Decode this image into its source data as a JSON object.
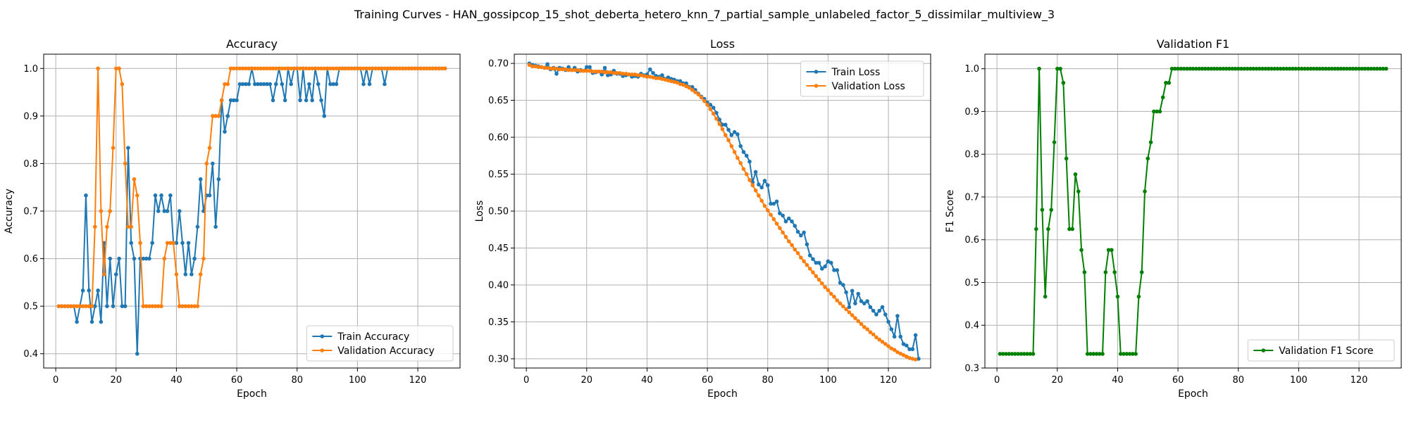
{
  "figure_title": "Training Curves - HAN_gossipcop_15_shot_deberta_hetero_knn_7_partial_sample_unlabeled_factor_5_dissimilar_multiview_3",
  "colors": {
    "blue": "#1f77b4",
    "orange": "#ff7f0e",
    "green": "#008000"
  },
  "chart_data": [
    {
      "type": "line",
      "title": "Accuracy",
      "xlabel": "Epoch",
      "ylabel": "Accuracy",
      "xlim": [
        -4,
        134
      ],
      "ylim": [
        0.37,
        1.03
      ],
      "xticks": [
        0,
        20,
        40,
        60,
        80,
        100,
        120
      ],
      "yticks": [
        0.4,
        0.5,
        0.6,
        0.7,
        0.8,
        0.9,
        1.0
      ],
      "ytick_decimals": 1,
      "grid": true,
      "legend_position": "lower-right",
      "series": [
        {
          "name": "Train Accuracy",
          "color": "#1f77b4",
          "marker": "circle",
          "x_start": 1,
          "x_step": 1,
          "values": [
            0.5,
            0.5,
            0.5,
            0.5,
            0.5,
            0.5,
            0.467,
            0.5,
            0.533,
            0.733,
            0.533,
            0.467,
            0.5,
            0.533,
            0.467,
            0.633,
            0.5,
            0.6,
            0.5,
            0.567,
            0.6,
            0.5,
            0.5,
            0.833,
            0.633,
            0.6,
            0.4,
            0.6,
            0.6,
            0.6,
            0.6,
            0.633,
            0.733,
            0.7,
            0.733,
            0.7,
            0.7,
            0.733,
            0.633,
            0.633,
            0.7,
            0.633,
            0.567,
            0.633,
            0.567,
            0.6,
            0.667,
            0.767,
            0.7,
            0.733,
            0.733,
            0.8,
            0.667,
            0.767,
            0.933,
            0.867,
            0.9,
            0.933,
            0.933,
            0.933,
            0.967,
            0.967,
            0.967,
            0.967,
            1.0,
            0.967,
            0.967,
            0.967,
            0.967,
            0.967,
            0.967,
            0.933,
            0.967,
            1.0,
            0.967,
            0.933,
            1.0,
            0.967,
            1.0,
            1.0,
            0.933,
            1.0,
            0.933,
            0.967,
            0.933,
            1.0,
            0.967,
            0.933,
            0.9,
            1.0,
            0.967,
            0.967,
            0.967,
            1.0,
            1.0,
            1.0,
            1.0,
            1.0,
            1.0,
            1.0,
            1.0,
            0.967,
            1.0,
            0.967,
            1.0,
            1.0,
            1.0,
            1.0,
            0.967,
            1.0,
            1.0,
            1.0,
            1.0,
            1.0,
            1.0,
            1.0,
            1.0,
            1.0,
            1.0,
            1.0,
            1.0,
            1.0,
            1.0,
            1.0,
            1.0,
            1.0,
            1.0,
            1.0,
            1.0
          ]
        },
        {
          "name": "Validation Accuracy",
          "color": "#ff7f0e",
          "marker": "circle",
          "x_start": 1,
          "x_step": 1,
          "values": [
            0.5,
            0.5,
            0.5,
            0.5,
            0.5,
            0.5,
            0.5,
            0.5,
            0.5,
            0.5,
            0.5,
            0.5,
            0.667,
            1.0,
            0.7,
            0.567,
            0.667,
            0.7,
            0.833,
            1.0,
            1.0,
            0.967,
            0.8,
            0.667,
            0.667,
            0.767,
            0.733,
            0.633,
            0.5,
            0.5,
            0.5,
            0.5,
            0.5,
            0.5,
            0.5,
            0.6,
            0.633,
            0.633,
            0.633,
            0.567,
            0.5,
            0.5,
            0.5,
            0.5,
            0.5,
            0.5,
            0.5,
            0.567,
            0.6,
            0.8,
            0.833,
            0.9,
            0.9,
            0.9,
            0.933,
            0.967,
            0.967,
            1.0,
            1.0,
            1.0,
            1.0,
            1.0,
            1.0,
            1.0,
            1.0,
            1.0,
            1.0,
            1.0,
            1.0,
            1.0,
            1.0,
            1.0,
            1.0,
            1.0,
            1.0,
            1.0,
            1.0,
            1.0,
            1.0,
            1.0,
            1.0,
            1.0,
            1.0,
            1.0,
            1.0,
            1.0,
            1.0,
            1.0,
            1.0,
            1.0,
            1.0,
            1.0,
            1.0,
            1.0,
            1.0,
            1.0,
            1.0,
            1.0,
            1.0,
            1.0,
            1.0,
            1.0,
            1.0,
            1.0,
            1.0,
            1.0,
            1.0,
            1.0,
            1.0,
            1.0,
            1.0,
            1.0,
            1.0,
            1.0,
            1.0,
            1.0,
            1.0,
            1.0,
            1.0,
            1.0,
            1.0,
            1.0,
            1.0,
            1.0,
            1.0,
            1.0,
            1.0,
            1.0,
            1.0
          ]
        }
      ]
    },
    {
      "type": "line",
      "title": "Loss",
      "xlabel": "Epoch",
      "ylabel": "Loss",
      "xlim": [
        -4,
        134
      ],
      "ylim": [
        0.2875,
        0.7125
      ],
      "xticks": [
        0,
        20,
        40,
        60,
        80,
        100,
        120
      ],
      "yticks": [
        0.3,
        0.35,
        0.4,
        0.45,
        0.5,
        0.55,
        0.6,
        0.65,
        0.7
      ],
      "ytick_decimals": 2,
      "grid": true,
      "legend_position": "top-right",
      "series": [
        {
          "name": "Train Loss",
          "color": "#1f77b4",
          "marker": "circle",
          "x_start": 1,
          "x_step": 1,
          "values": [
            0.7,
            0.698,
            0.697,
            0.696,
            0.695,
            0.694,
            0.699,
            0.692,
            0.694,
            0.686,
            0.694,
            0.693,
            0.691,
            0.695,
            0.691,
            0.694,
            0.689,
            0.691,
            0.69,
            0.695,
            0.695,
            0.687,
            0.688,
            0.689,
            0.685,
            0.694,
            0.684,
            0.685,
            0.69,
            0.686,
            0.686,
            0.683,
            0.684,
            0.685,
            0.682,
            0.683,
            0.682,
            0.686,
            0.684,
            0.685,
            0.692,
            0.687,
            0.683,
            0.682,
            0.684,
            0.679,
            0.681,
            0.679,
            0.678,
            0.676,
            0.676,
            0.673,
            0.673,
            0.668,
            0.668,
            0.664,
            0.659,
            0.655,
            0.652,
            0.647,
            0.644,
            0.64,
            0.633,
            0.624,
            0.617,
            0.617,
            0.61,
            0.603,
            0.607,
            0.604,
            0.588,
            0.58,
            0.575,
            0.567,
            0.539,
            0.553,
            0.536,
            0.532,
            0.541,
            0.535,
            0.51,
            0.51,
            0.513,
            0.497,
            0.494,
            0.486,
            0.49,
            0.486,
            0.48,
            0.472,
            0.467,
            0.471,
            0.455,
            0.44,
            0.435,
            0.43,
            0.43,
            0.422,
            0.425,
            0.432,
            0.43,
            0.42,
            0.42,
            0.403,
            0.4,
            0.39,
            0.37,
            0.392,
            0.375,
            0.388,
            0.378,
            0.375,
            0.378,
            0.37,
            0.365,
            0.36,
            0.365,
            0.37,
            0.36,
            0.35,
            0.34,
            0.33,
            0.358,
            0.33,
            0.32,
            0.318,
            0.313,
            0.313,
            0.332,
            0.3
          ]
        },
        {
          "name": "Validation Loss",
          "color": "#ff7f0e",
          "marker": "circle",
          "x_start": 1,
          "x_step": 1,
          "values": [
            0.698,
            0.696,
            0.696,
            0.695,
            0.695,
            0.694,
            0.694,
            0.693,
            0.693,
            0.693,
            0.692,
            0.692,
            0.692,
            0.691,
            0.691,
            0.691,
            0.691,
            0.69,
            0.69,
            0.69,
            0.69,
            0.689,
            0.689,
            0.689,
            0.689,
            0.688,
            0.688,
            0.688,
            0.687,
            0.687,
            0.687,
            0.686,
            0.686,
            0.685,
            0.685,
            0.685,
            0.684,
            0.684,
            0.683,
            0.682,
            0.682,
            0.681,
            0.68,
            0.68,
            0.679,
            0.678,
            0.677,
            0.676,
            0.675,
            0.674,
            0.672,
            0.671,
            0.669,
            0.667,
            0.664,
            0.661,
            0.658,
            0.654,
            0.649,
            0.644,
            0.638,
            0.632,
            0.625,
            0.618,
            0.611,
            0.603,
            0.596,
            0.588,
            0.58,
            0.572,
            0.565,
            0.557,
            0.55,
            0.542,
            0.535,
            0.528,
            0.521,
            0.514,
            0.507,
            0.501,
            0.495,
            0.489,
            0.483,
            0.477,
            0.471,
            0.465,
            0.459,
            0.454,
            0.448,
            0.443,
            0.437,
            0.432,
            0.427,
            0.422,
            0.417,
            0.412,
            0.407,
            0.402,
            0.397,
            0.393,
            0.388,
            0.384,
            0.379,
            0.375,
            0.371,
            0.367,
            0.363,
            0.359,
            0.355,
            0.351,
            0.347,
            0.343,
            0.34,
            0.336,
            0.333,
            0.329,
            0.326,
            0.323,
            0.32,
            0.317,
            0.314,
            0.312,
            0.309,
            0.307,
            0.305,
            0.303,
            0.301,
            0.3,
            0.299
          ]
        }
      ]
    },
    {
      "type": "line",
      "title": "Validation F1",
      "xlabel": "Epoch",
      "ylabel": "F1 Score",
      "xlim": [
        -4,
        134
      ],
      "ylim": [
        0.3,
        1.034
      ],
      "xticks": [
        0,
        20,
        40,
        60,
        80,
        100,
        120
      ],
      "yticks": [
        0.3,
        0.4,
        0.5,
        0.6,
        0.7,
        0.8,
        0.9,
        1.0
      ],
      "ytick_decimals": 1,
      "grid": true,
      "legend_position": "lower-right",
      "series": [
        {
          "name": "Validation F1 Score",
          "color": "#008000",
          "marker": "circle",
          "x_start": 1,
          "x_step": 1,
          "values": [
            0.333,
            0.333,
            0.333,
            0.333,
            0.333,
            0.333,
            0.333,
            0.333,
            0.333,
            0.333,
            0.333,
            0.333,
            0.625,
            1.0,
            0.67,
            0.467,
            0.625,
            0.67,
            0.828,
            1.0,
            1.0,
            0.967,
            0.79,
            0.625,
            0.625,
            0.753,
            0.713,
            0.576,
            0.524,
            0.333,
            0.333,
            0.333,
            0.333,
            0.333,
            0.333,
            0.524,
            0.576,
            0.576,
            0.524,
            0.467,
            0.333,
            0.333,
            0.333,
            0.333,
            0.333,
            0.333,
            0.467,
            0.524,
            0.713,
            0.79,
            0.828,
            0.9,
            0.9,
            0.9,
            0.933,
            0.967,
            0.967,
            1.0,
            1.0,
            1.0,
            1.0,
            1.0,
            1.0,
            1.0,
            1.0,
            1.0,
            1.0,
            1.0,
            1.0,
            1.0,
            1.0,
            1.0,
            1.0,
            1.0,
            1.0,
            1.0,
            1.0,
            1.0,
            1.0,
            1.0,
            1.0,
            1.0,
            1.0,
            1.0,
            1.0,
            1.0,
            1.0,
            1.0,
            1.0,
            1.0,
            1.0,
            1.0,
            1.0,
            1.0,
            1.0,
            1.0,
            1.0,
            1.0,
            1.0,
            1.0,
            1.0,
            1.0,
            1.0,
            1.0,
            1.0,
            1.0,
            1.0,
            1.0,
            1.0,
            1.0,
            1.0,
            1.0,
            1.0,
            1.0,
            1.0,
            1.0,
            1.0,
            1.0,
            1.0,
            1.0,
            1.0,
            1.0,
            1.0,
            1.0,
            1.0,
            1.0,
            1.0,
            1.0,
            1.0
          ]
        }
      ]
    }
  ]
}
